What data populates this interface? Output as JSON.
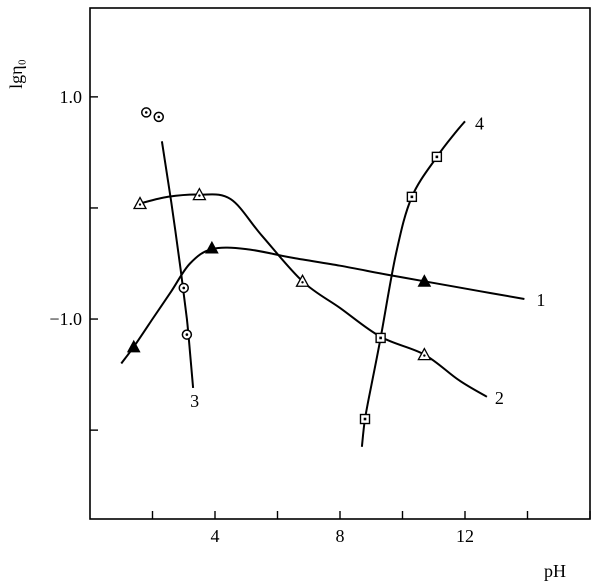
{
  "chart_data": {
    "type": "line",
    "xlabel": "pH",
    "ylabel": "lgη₀",
    "xlim": [
      0,
      16
    ],
    "ylim": [
      -2.8,
      1.8
    ],
    "x_ticks": [
      2,
      4,
      6,
      8,
      10,
      12,
      14,
      16
    ],
    "x_tick_labels": [
      "",
      "4",
      "",
      "8",
      "",
      "12",
      "",
      ""
    ],
    "y_ticks": [
      1.0,
      0.0,
      -1.0,
      -2.0
    ],
    "y_tick_labels": [
      "1.0",
      "",
      "−1.0",
      ""
    ],
    "series": [
      {
        "name": "1",
        "marker": "filled-triangle",
        "points": [
          [
            1.4,
            -1.25
          ],
          [
            3.9,
            -0.36
          ],
          [
            10.7,
            -0.66
          ]
        ],
        "curve": [
          [
            1.0,
            -1.4
          ],
          [
            1.4,
            -1.25
          ],
          [
            2.0,
            -1.0
          ],
          [
            2.6,
            -0.75
          ],
          [
            3.2,
            -0.5
          ],
          [
            3.9,
            -0.37
          ],
          [
            5.0,
            -0.37
          ],
          [
            6.5,
            -0.45
          ],
          [
            8.0,
            -0.52
          ],
          [
            9.5,
            -0.6
          ],
          [
            10.7,
            -0.66
          ],
          [
            12.5,
            -0.75
          ],
          [
            13.9,
            -0.82
          ]
        ]
      },
      {
        "name": "2",
        "marker": "open-triangle",
        "points": [
          [
            1.6,
            0.04
          ],
          [
            3.5,
            0.12
          ],
          [
            6.8,
            -0.66
          ],
          [
            10.7,
            -1.32
          ]
        ],
        "curve": [
          [
            1.6,
            0.04
          ],
          [
            2.5,
            0.1
          ],
          [
            3.5,
            0.12
          ],
          [
            4.5,
            0.08
          ],
          [
            5.5,
            -0.25
          ],
          [
            6.8,
            -0.66
          ],
          [
            8.0,
            -0.9
          ],
          [
            9.3,
            -1.16
          ],
          [
            10.7,
            -1.32
          ],
          [
            11.8,
            -1.55
          ],
          [
            12.7,
            -1.7
          ]
        ]
      },
      {
        "name": "3",
        "marker": "open-circle",
        "points": [
          [
            1.8,
            0.86
          ],
          [
            2.2,
            0.82
          ],
          [
            3.0,
            -0.72
          ],
          [
            3.1,
            -1.14
          ]
        ],
        "curve": [
          [
            2.3,
            0.6
          ],
          [
            2.6,
            0.05
          ],
          [
            2.9,
            -0.55
          ],
          [
            3.1,
            -1.0
          ],
          [
            3.2,
            -1.3
          ],
          [
            3.3,
            -1.62
          ]
        ]
      },
      {
        "name": "4",
        "marker": "square-dot",
        "points": [
          [
            8.8,
            -1.9
          ],
          [
            9.3,
            -1.17
          ],
          [
            10.3,
            0.1
          ],
          [
            11.1,
            0.46
          ]
        ],
        "curve": [
          [
            8.7,
            -2.15
          ],
          [
            8.8,
            -1.9
          ],
          [
            9.0,
            -1.6
          ],
          [
            9.3,
            -1.17
          ],
          [
            9.8,
            -0.4
          ],
          [
            10.3,
            0.1
          ],
          [
            11.1,
            0.46
          ],
          [
            11.7,
            0.68
          ],
          [
            12.0,
            0.78
          ]
        ]
      }
    ]
  }
}
